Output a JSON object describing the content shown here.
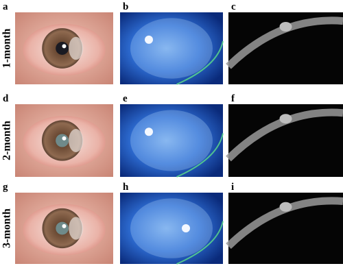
{
  "rows": [
    {
      "label": "1-month",
      "panels": [
        "a",
        "b",
        "c"
      ]
    },
    {
      "label": "2-month",
      "panels": [
        "d",
        "e",
        "f"
      ]
    },
    {
      "label": "3-month",
      "panels": [
        "g",
        "h",
        "i"
      ]
    }
  ]
}
